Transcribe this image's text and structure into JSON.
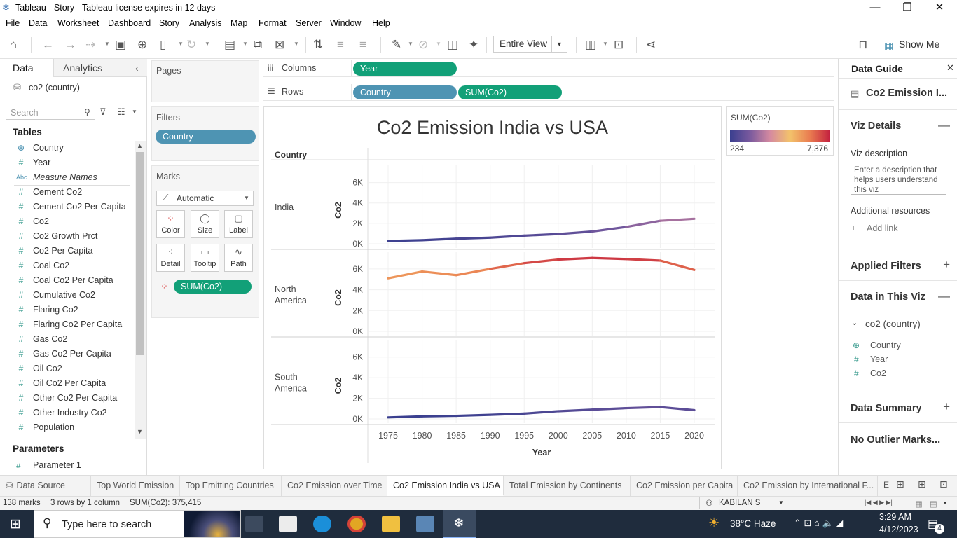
{
  "titlebar": {
    "title": "Tableau - Story - Tableau license expires in 12 days"
  },
  "menu": [
    "File",
    "Data",
    "Worksheet",
    "Dashboard",
    "Story",
    "Analysis",
    "Map",
    "Format",
    "Server",
    "Window",
    "Help"
  ],
  "toolbar": {
    "view_mode": "Entire View",
    "show_me": "Show Me"
  },
  "left_pane": {
    "tabs": [
      "Data",
      "Analytics"
    ],
    "datasource": "co2 (country)",
    "search_placeholder": "Search",
    "tables_heading": "Tables",
    "fields": [
      {
        "name": "Country",
        "icon": "globe-icon"
      },
      {
        "name": "Year",
        "icon": "hash-icon"
      },
      {
        "name": "Measure Names",
        "icon": "abc-icon"
      },
      {
        "name": "Cement Co2",
        "icon": "hash-icon"
      },
      {
        "name": "Cement Co2 Per Capita",
        "icon": "hash-icon"
      },
      {
        "name": "Co2",
        "icon": "hash-icon"
      },
      {
        "name": "Co2 Growth Prct",
        "icon": "hash-icon"
      },
      {
        "name": "Co2 Per Capita",
        "icon": "hash-icon"
      },
      {
        "name": "Coal Co2",
        "icon": "hash-icon"
      },
      {
        "name": "Coal Co2 Per Capita",
        "icon": "hash-icon"
      },
      {
        "name": "Cumulative Co2",
        "icon": "hash-icon"
      },
      {
        "name": "Flaring Co2",
        "icon": "hash-icon"
      },
      {
        "name": "Flaring Co2 Per Capita",
        "icon": "hash-icon"
      },
      {
        "name": "Gas Co2",
        "icon": "hash-icon"
      },
      {
        "name": "Gas Co2 Per Capita",
        "icon": "hash-icon"
      },
      {
        "name": "Oil Co2",
        "icon": "hash-icon"
      },
      {
        "name": "Oil Co2 Per Capita",
        "icon": "hash-icon"
      },
      {
        "name": "Other Co2 Per Capita",
        "icon": "hash-icon"
      },
      {
        "name": "Other Industry Co2",
        "icon": "hash-icon"
      },
      {
        "name": "Population",
        "icon": "hash-icon"
      }
    ],
    "parameters_heading": "Parameters",
    "parameters": [
      "Parameter 1"
    ]
  },
  "shelves": {
    "pages_label": "Pages",
    "filters_label": "Filters",
    "filter_pill": "Country",
    "marks_label": "Marks",
    "mark_type": "Automatic",
    "mark_buttons": [
      "Color",
      "Size",
      "Label",
      "Detail",
      "Tooltip",
      "Path"
    ],
    "marks_pill": "SUM(Co2)",
    "columns_label": "Columns",
    "columns_pills": [
      "Year"
    ],
    "rows_label": "Rows",
    "rows_pills": [
      "Country",
      "SUM(Co2)"
    ]
  },
  "legend": {
    "title": "SUM(Co2)",
    "min_label": "234",
    "max_label": "7,376",
    "colors": [
      "#3a3f8f",
      "#7a5a9e",
      "#d58aa0",
      "#f3c26b",
      "#e97b50",
      "#c3203f"
    ]
  },
  "chart_data": {
    "type": "line",
    "title": "Co2 Emission India vs USA",
    "row_header": "Country",
    "xlabel": "Year",
    "ylabel": "Co2",
    "x_ticks": [
      1975,
      1980,
      1985,
      1990,
      1995,
      2000,
      2005,
      2010,
      2015,
      2020
    ],
    "y_ticks": [
      "0K",
      "2K",
      "4K",
      "6K"
    ],
    "x": [
      1975,
      1980,
      1985,
      1990,
      1995,
      2000,
      2005,
      2010,
      2015,
      2020
    ],
    "panes": [
      {
        "name": "India",
        "ylim": [
          0,
          7000
        ],
        "values": [
          280,
          350,
          500,
          600,
          800,
          950,
          1200,
          1650,
          2250,
          2450
        ]
      },
      {
        "name": "North America",
        "ylim": [
          0,
          7000
        ],
        "values": [
          5100,
          5750,
          5400,
          6000,
          6550,
          6900,
          7050,
          6950,
          6800,
          5900
        ]
      },
      {
        "name": "South America",
        "ylim": [
          0,
          7000
        ],
        "values": [
          150,
          250,
          300,
          400,
          520,
          750,
          900,
          1050,
          1150,
          850
        ]
      }
    ],
    "color_range": [
      234,
      7376
    ]
  },
  "right_pane": {
    "title": "Data Guide",
    "sheet_name": "Co2 Emission I...",
    "viz_details": "Viz Details",
    "viz_description_label": "Viz description",
    "description_placeholder": "Enter a description that helps users understand this viz",
    "additional_resources": "Additional resources",
    "add_link": "Add link",
    "applied_filters": "Applied Filters",
    "data_in_viz": "Data in This Viz",
    "datasource": "co2 (country)",
    "viz_fields": [
      "Country",
      "Year",
      "Co2"
    ],
    "data_summary": "Data Summary",
    "outliers": "No Outlier Marks..."
  },
  "story_tabs": [
    "Data Source",
    "Top World Emission",
    "Top Emitting Countries",
    "Co2 Emission over Time",
    "Co2 Emission India vs USA",
    "Total Emission by Continents",
    "Co2 Emission per Capita",
    "Co2 Emission by International F..."
  ],
  "status": {
    "marks": "138 marks",
    "dims": "3 rows by 1 column",
    "sum": "SUM(Co2): 375,415",
    "user": "KABILAN S"
  },
  "taskbar": {
    "search_placeholder": "Type here to search",
    "weather": "38°C  Haze",
    "time": "3:29 AM",
    "date": "4/12/2023",
    "notifications": "4"
  }
}
